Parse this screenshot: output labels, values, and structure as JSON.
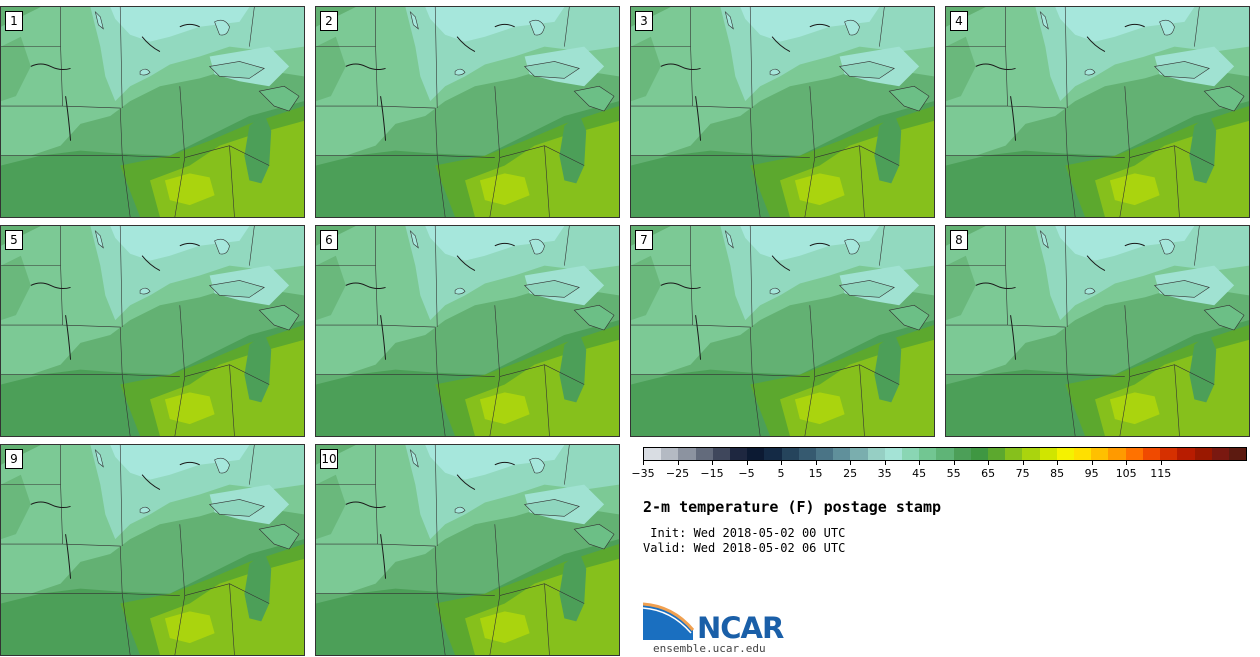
{
  "panels": [
    "1",
    "2",
    "3",
    "4",
    "5",
    "6",
    "7",
    "8",
    "9",
    "10"
  ],
  "colorbar": {
    "colors": [
      "#d9dde3",
      "#b4bac3",
      "#8c93a0",
      "#636b7c",
      "#3f475c",
      "#1e2740",
      "#0c1a33",
      "#142a45",
      "#25445c",
      "#365a70",
      "#4a7486",
      "#60909b",
      "#7aaeae",
      "#96cfc4",
      "#a4e3d6",
      "#8ad6b4",
      "#72c692",
      "#5fb477",
      "#4c9f58",
      "#3f9742",
      "#5ca82e",
      "#86c01c",
      "#aad40e",
      "#d0e500",
      "#f5f200",
      "#ffe000",
      "#ffc000",
      "#ff9a00",
      "#ff7200",
      "#f04a00",
      "#d63000",
      "#b81c00",
      "#9a1800",
      "#7a1810",
      "#5c1a10"
    ],
    "tick_labels": [
      "−35",
      "−25",
      "−15",
      "−5",
      "5",
      "15",
      "25",
      "35",
      "45",
      "55",
      "65",
      "75",
      "85",
      "95",
      "105",
      "115"
    ]
  },
  "title": "2-m temperature (F) postage stamp",
  "init_line": " Init: Wed 2018-05-02 00 UTC",
  "valid_line": "Valid: Wed 2018-05-02 06 UTC",
  "logo_text": "NCAR",
  "url": "ensemble.ucar.edu"
}
